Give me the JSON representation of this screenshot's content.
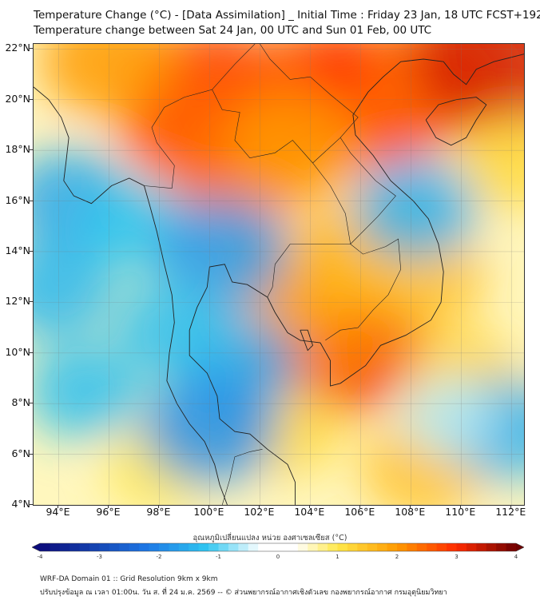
{
  "header": {
    "title_line1": "Temperature Change (°C) - [Data Assimilation] _ Initial Time : Friday 23 Jan, 18 UTC FCST+192",
    "title_line2": "Temperature change between Sat 24 Jan, 00 UTC and Sun 01 Feb, 00 UTC"
  },
  "map": {
    "extent": {
      "lon_min": 93,
      "lon_max": 112.5,
      "lat_min": 4,
      "lat_max": 22.2
    },
    "lat_labels": [
      {
        "lat": 22,
        "label": "22°N"
      },
      {
        "lat": 20,
        "label": "20°N"
      },
      {
        "lat": 18,
        "label": "18°N"
      },
      {
        "lat": 16,
        "label": "16°N"
      },
      {
        "lat": 14,
        "label": "14°N"
      },
      {
        "lat": 12,
        "label": "12°N"
      },
      {
        "lat": 10,
        "label": "10°N"
      },
      {
        "lat": 8,
        "label": "8°N"
      },
      {
        "lat": 6,
        "label": "6°N"
      },
      {
        "lat": 4,
        "label": "4°N"
      }
    ],
    "lon_labels": [
      {
        "lon": 94,
        "label": "94°E"
      },
      {
        "lon": 96,
        "label": "96°E"
      },
      {
        "lon": 98,
        "label": "98°E"
      },
      {
        "lon": 100,
        "label": "100°E"
      },
      {
        "lon": 102,
        "label": "102°E"
      },
      {
        "lon": 104,
        "label": "104°E"
      },
      {
        "lon": 106,
        "label": "106°E"
      },
      {
        "lon": 108,
        "label": "108°E"
      },
      {
        "lon": 110,
        "label": "110°E"
      },
      {
        "lon": 112,
        "label": "112°E"
      }
    ],
    "anomalies": [
      {
        "lon": 100.0,
        "lat": 20.2,
        "value": 2.9
      },
      {
        "lon": 99.5,
        "lat": 19.0,
        "value": 2.6
      },
      {
        "lon": 101.2,
        "lat": 17.5,
        "value": 2.4
      },
      {
        "lon": 104.5,
        "lat": 20.5,
        "value": 2.6
      },
      {
        "lon": 106.5,
        "lat": 20.0,
        "value": 3.0
      },
      {
        "lon": 109.0,
        "lat": 20.8,
        "value": 2.4
      },
      {
        "lon": 111.6,
        "lat": 21.5,
        "value": 3.3
      },
      {
        "lon": 96.0,
        "lat": 21.5,
        "value": 2.0
      },
      {
        "lon": 103.5,
        "lat": 18.2,
        "value": 2.0
      },
      {
        "lon": 105.2,
        "lat": 10.4,
        "value": 3.1
      },
      {
        "lon": 104.8,
        "lat": 11.2,
        "value": 2.2
      },
      {
        "lon": 103.5,
        "lat": 12.8,
        "value": 1.8
      },
      {
        "lon": 106.0,
        "lat": 14.0,
        "value": 1.6
      },
      {
        "lon": 108.5,
        "lat": 13.0,
        "value": 1.5
      },
      {
        "lon": 110.0,
        "lat": 9.0,
        "value": 1.3
      },
      {
        "lon": 108.5,
        "lat": 5.5,
        "value": 1.5
      },
      {
        "lon": 103.0,
        "lat": 7.0,
        "value": 1.2
      },
      {
        "lon": 98.0,
        "lat": 5.5,
        "value": 1.0
      },
      {
        "lon": 112.0,
        "lat": 17.5,
        "value": 1.2
      },
      {
        "lon": 94.5,
        "lat": 16.0,
        "value": -1.6
      },
      {
        "lon": 93.8,
        "lat": 12.5,
        "value": -1.4
      },
      {
        "lon": 97.0,
        "lat": 15.0,
        "value": -1.2
      },
      {
        "lon": 100.5,
        "lat": 14.0,
        "value": -1.8
      },
      {
        "lon": 101.0,
        "lat": 9.5,
        "value": -1.6
      },
      {
        "lon": 100.0,
        "lat": 7.0,
        "value": -1.9
      },
      {
        "lon": 95.0,
        "lat": 8.5,
        "value": -1.3
      },
      {
        "lon": 98.5,
        "lat": 11.0,
        "value": -1.3
      },
      {
        "lon": 108.2,
        "lat": 15.7,
        "value": -1.5
      },
      {
        "lon": 111.8,
        "lat": 7.0,
        "value": -1.5
      },
      {
        "lon": 109.5,
        "lat": 7.5,
        "value": -0.6
      }
    ]
  },
  "colorbar": {
    "label": "อุณหภูมิเปลี่ยนแปลง หน่วย องศาเซลเซียส (°C)",
    "min": -4,
    "max": 4,
    "ticks": [
      "-4",
      "-3",
      "-2",
      "-1",
      "0",
      "1",
      "2",
      "3",
      "4"
    ]
  },
  "footer": {
    "line1": "WRF-DA Domain 01 :: Grid Resolution 9km x 9km",
    "line2": "ปรับปรุงข้อมูล ณ เวลา 01:00น. วัน ส. ที่ 24 ม.ค. 2569 -- © ส่วนพยากรณ์อากาศเชิงตัวเลข กองพยากรณ์อากาศ กรมอุตุนิยมวิทยา"
  },
  "colors": {
    "cold_extreme": "#0b0b7a",
    "cool": "#2fc6f0",
    "neutral": "#ffffff",
    "warm": "#ffe84a",
    "hot": "#ff2a00",
    "hot_extreme": "#6e0000"
  }
}
